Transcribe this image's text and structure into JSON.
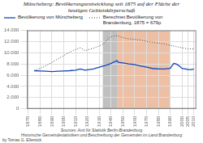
{
  "chart_data": {
    "type": "line",
    "title": "Müncheberg: Bevölkerungsentwicklung seit 1875 auf der Fläche der\nheutigen Gebietskörperschaft",
    "series": [
      {
        "name": "Bevölkerung von Müncheberg",
        "color": "#1144bb",
        "line_style": "solid",
        "x": [
          1875,
          1880,
          1885,
          1890,
          1895,
          1900,
          1905,
          1910,
          1914,
          1918,
          1925,
          1933,
          1939,
          1945,
          1946,
          1950,
          1955,
          1960,
          1964,
          1971,
          1975,
          1981,
          1985,
          1990,
          1993,
          1995,
          1998,
          2000,
          2003,
          2005,
          2008,
          2010
        ],
        "values": [
          6800,
          6750,
          6700,
          6650,
          6700,
          6750,
          6800,
          6900,
          7100,
          6900,
          7100,
          7600,
          8000,
          8600,
          8300,
          8200,
          8000,
          7900,
          7700,
          7400,
          7200,
          7100,
          7100,
          7200,
          8100,
          8000,
          7600,
          7200,
          7100,
          7000,
          7000,
          7100
        ]
      },
      {
        "name": "Berechnet Bevölkerung von\nBrandenburg, 1875 = 679p",
        "color": "#444444",
        "line_style": "dotted",
        "x": [
          1875,
          1880,
          1885,
          1890,
          1895,
          1900,
          1905,
          1910,
          1914,
          1918,
          1925,
          1933,
          1939,
          1945,
          1950,
          1955,
          1960,
          1964,
          1971,
          1975,
          1981,
          1985,
          1990,
          1993,
          1995,
          2000,
          2005,
          2010
        ],
        "values": [
          6800,
          7200,
          7700,
          8300,
          8900,
          9500,
          10100,
          10600,
          10900,
          10400,
          10800,
          11500,
          12800,
          13100,
          12700,
          12500,
          12400,
          12300,
          12000,
          11900,
          11700,
          11600,
          11300,
          11200,
          11100,
          10900,
          10700,
          10700
        ]
      }
    ],
    "spans": [
      {
        "start": 1933,
        "end": 1945,
        "color": "#b0b0b0"
      },
      {
        "start": 1945,
        "end": 1990,
        "color": "#e8b090"
      }
    ],
    "xlim": [
      1869,
      2012
    ],
    "xticks": [
      1870,
      1880,
      1890,
      1900,
      1910,
      1920,
      1930,
      1940,
      1950,
      1960,
      1970,
      1980,
      1990,
      2000,
      2005,
      2010
    ],
    "ylim": [
      0,
      14000
    ],
    "yticks": [
      0,
      {
        "value": 2000,
        "label": "2.000"
      },
      {
        "value": 4000,
        "label": "4.000"
      },
      {
        "value": 6000,
        "label": "6.000"
      },
      {
        "value": 8000,
        "label": "8.000"
      },
      {
        "value": 10000,
        "label": "10.000"
      },
      {
        "value": 12000,
        "label": "12.000"
      },
      {
        "value": 14000,
        "label": "14.000"
      }
    ],
    "grid": true,
    "legend": "upper left",
    "source": "Sources: Amt für Statistik Berlin-Brandenburg\nHistorische Gemeindestatistiken und Beschreibung der Gemeinden im Land Brandenburg",
    "author": "by Tomas G. Ellersick"
  }
}
